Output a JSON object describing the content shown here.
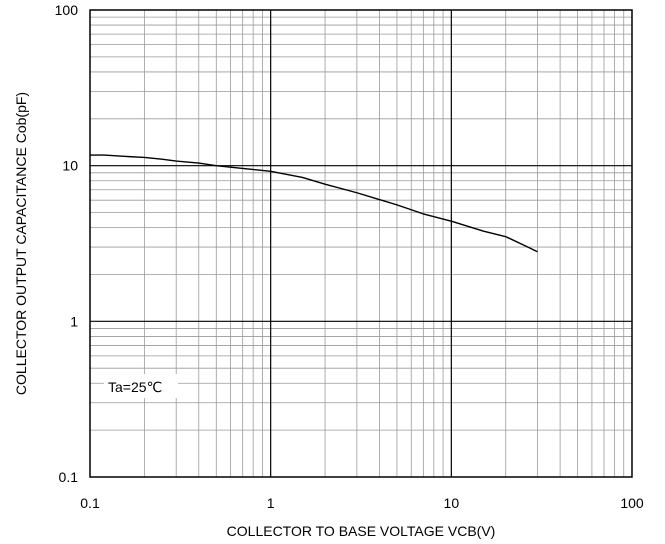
{
  "chart_data": {
    "type": "line",
    "title": "",
    "xlabel": "COLLECTOR TO BASE VOLTAGE VCB(V)",
    "ylabel": "COLLECTOR OUTPUT CAPACITANCE Cob(pF)",
    "xscale": "log",
    "yscale": "log",
    "xlim": [
      0.1,
      100
    ],
    "ylim": [
      0.1,
      100
    ],
    "grid": true,
    "legend": "none",
    "x_ticks": [
      {
        "value": 0.1,
        "label": "0.1"
      },
      {
        "value": 1,
        "label": "1"
      },
      {
        "value": 10,
        "label": "10"
      },
      {
        "value": 100,
        "label": "100"
      }
    ],
    "y_ticks": [
      {
        "value": 0.1,
        "label": "0.1"
      },
      {
        "value": 1,
        "label": "1"
      },
      {
        "value": 10,
        "label": "10"
      },
      {
        "value": 100,
        "label": "100"
      }
    ],
    "annotation": "Ta=25℃",
    "line_color": "#000000",
    "series": [
      {
        "x": [
          0.1,
          0.12,
          0.15,
          0.2,
          0.25,
          0.3,
          0.4,
          0.5,
          0.7,
          1,
          1.5,
          2,
          3,
          5,
          7,
          10,
          15,
          20,
          25,
          30
        ],
        "y": [
          11.7,
          11.7,
          11.5,
          11.3,
          11.0,
          10.7,
          10.4,
          10.0,
          9.6,
          9.2,
          8.4,
          7.6,
          6.7,
          5.6,
          4.9,
          4.4,
          3.8,
          3.5,
          3.1,
          2.8
        ]
      }
    ]
  }
}
